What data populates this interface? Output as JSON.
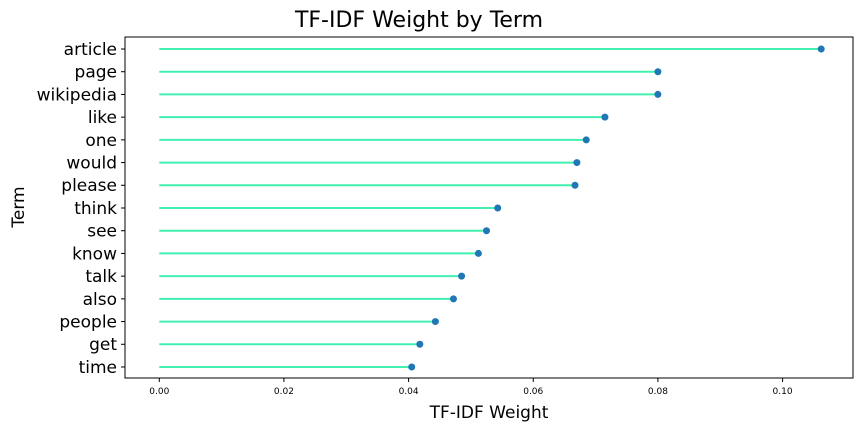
{
  "chart_data": {
    "type": "lollipop",
    "title": "TF-IDF Weight by Term",
    "xlabel": "TF-IDF Weight",
    "ylabel": "Term",
    "categories": [
      "article",
      "page",
      "wikipedia",
      "like",
      "one",
      "would",
      "please",
      "think",
      "see",
      "know",
      "talk",
      "also",
      "people",
      "get",
      "time"
    ],
    "values": [
      0.1062,
      0.08,
      0.08,
      0.0715,
      0.0685,
      0.067,
      0.0667,
      0.0543,
      0.0525,
      0.0512,
      0.0485,
      0.0472,
      0.0443,
      0.0418,
      0.0405
    ],
    "xlim": [
      -0.0055,
      0.1113
    ],
    "xticks": [
      0.0,
      0.02,
      0.04,
      0.06,
      0.08,
      0.1
    ],
    "xtick_labels": [
      "0.00",
      "0.02",
      "0.04",
      "0.06",
      "0.08",
      "0.10"
    ],
    "grid": false,
    "colors": {
      "stem": "#40f0b0",
      "marker": "#1f77b4"
    }
  }
}
